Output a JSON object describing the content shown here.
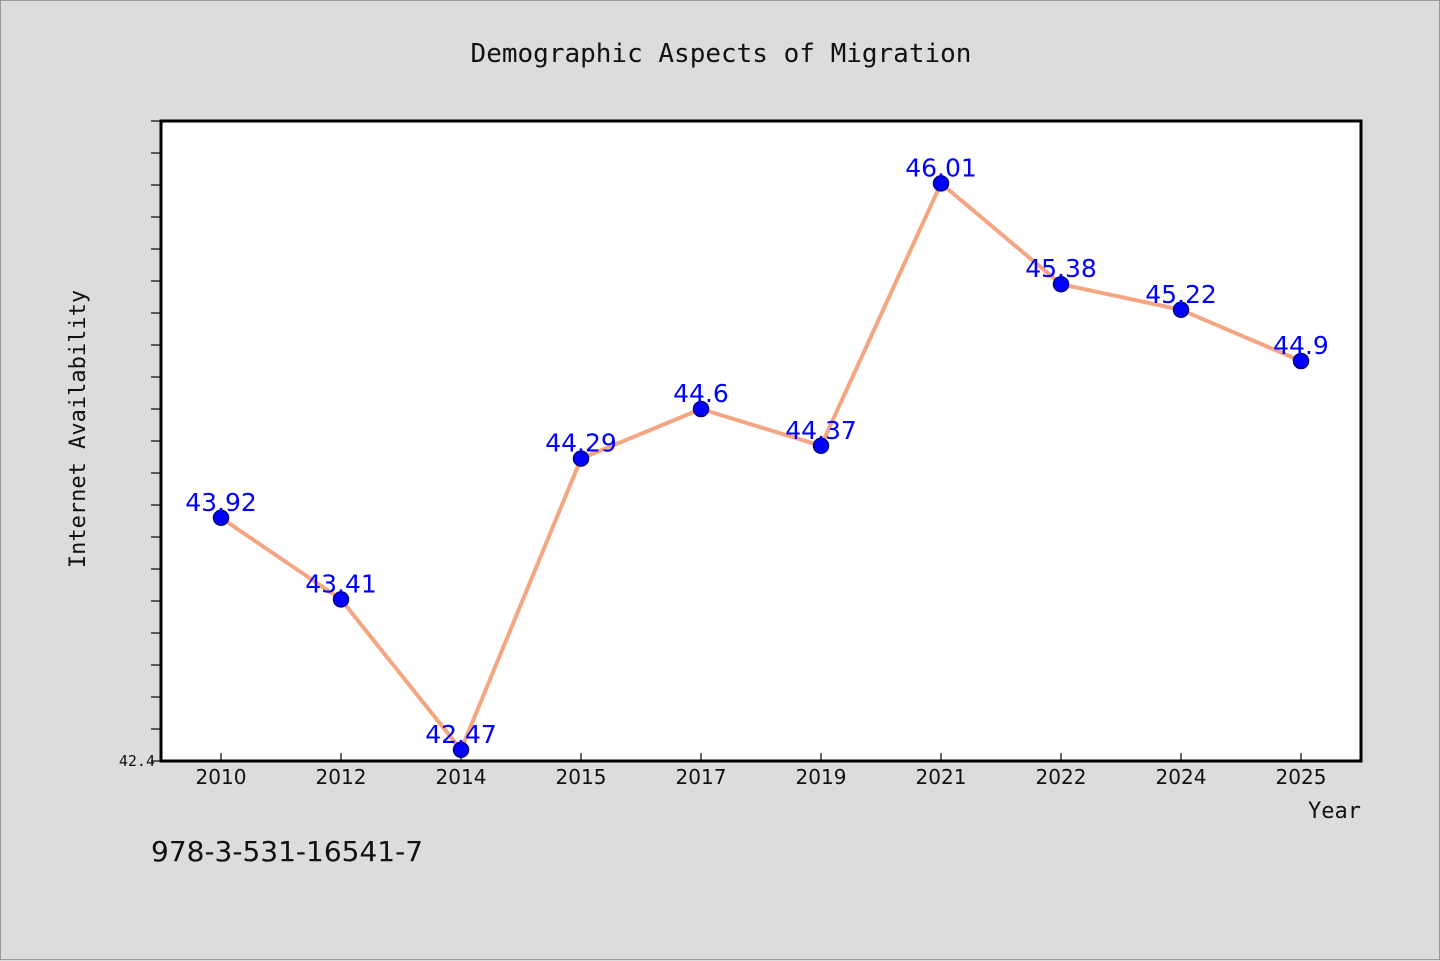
{
  "chart_data": {
    "type": "line",
    "title": "Demographic Aspects of Migration",
    "xlabel": "Year",
    "ylabel": "Internet Availability",
    "categories": [
      "2010",
      "2012",
      "2014",
      "2015",
      "2017",
      "2019",
      "2021",
      "2022",
      "2024",
      "2025"
    ],
    "series": [
      {
        "values": [
          43.92,
          43.41,
          42.47,
          44.29,
          44.6,
          44.37,
          46.01,
          45.38,
          45.22,
          44.9
        ],
        "labels": [
          "43.92",
          "43.41",
          "42.47",
          "44.29",
          "44.6",
          "44.37",
          "46.01",
          "45.38",
          "45.22",
          "44.9"
        ]
      }
    ],
    "y_tick_labels": [
      "42.4"
    ],
    "ylim": [
      42.4,
      46.4
    ],
    "grid": false,
    "legend": "none",
    "colors": {
      "line": "#f4a582",
      "marker": "#0000ff",
      "marker_edge": "#000080",
      "data_label": "#0000ff",
      "plot_background": "#ffffff",
      "page_background": "#dcdcdc"
    }
  },
  "footer": {
    "isbn": "978-3-531-16541-7"
  }
}
